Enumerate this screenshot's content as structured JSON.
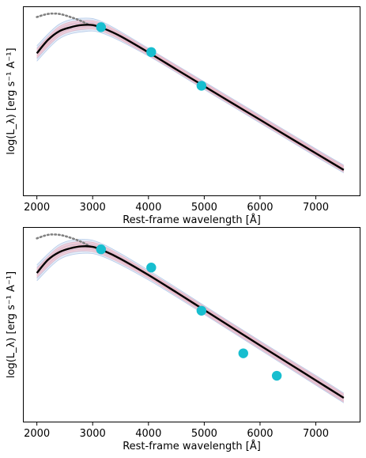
{
  "chart_data": [
    {
      "type": "line",
      "xlabel": "Rest-frame wavelength [Å]",
      "ylabel": "log(L_λ) [erg s⁻¹ A⁻¹]",
      "xlim": [
        1750,
        7800
      ],
      "ylim": [
        0,
        1
      ],
      "xticks": [
        2000,
        3000,
        4000,
        5000,
        6000,
        7000
      ],
      "yticks_shown": false,
      "model_curve": {
        "x": [
          2000,
          2200,
          2400,
          2600,
          2800,
          3000,
          3200,
          3500,
          4000,
          4500,
          5000,
          5500,
          6000,
          6500,
          7000,
          7500
        ],
        "y": [
          0.771,
          0.849,
          0.899,
          0.922,
          0.935,
          0.935,
          0.915,
          0.87,
          0.776,
          0.677,
          0.579,
          0.481,
          0.384,
          0.286,
          0.189,
          0.092
        ],
        "color": "#000000"
      },
      "extrapolated_curve": {
        "x": [
          2000,
          2200,
          2400,
          2600,
          2800,
          2950
        ],
        "y": [
          0.982,
          1.0,
          1.0,
          0.982,
          0.958,
          0.933
        ],
        "color": "#808080",
        "style": "dotted"
      },
      "uncertainty_bands": [
        {
          "color": "#aec7e8",
          "x": [
            2000,
            2400,
            2800,
            3200,
            4000,
            5000,
            6000,
            7000,
            7500
          ],
          "upper": [
            0.815,
            0.94,
            0.975,
            0.95,
            0.8,
            0.605,
            0.41,
            0.215,
            0.12
          ],
          "lower": [
            0.725,
            0.855,
            0.895,
            0.885,
            0.755,
            0.56,
            0.365,
            0.17,
            0.075
          ]
        },
        {
          "color": "#f4b6c2",
          "x": [
            2000,
            2400,
            2800,
            3200,
            4000,
            5000,
            6000,
            7000,
            7500
          ],
          "upper": [
            0.795,
            0.925,
            0.96,
            0.94,
            0.795,
            0.6,
            0.405,
            0.21,
            0.115
          ],
          "lower": [
            0.745,
            0.87,
            0.91,
            0.895,
            0.76,
            0.565,
            0.37,
            0.175,
            0.08
          ]
        }
      ],
      "photometry": {
        "x": [
          3150,
          4050,
          4950
        ],
        "y": [
          0.923,
          0.778,
          0.582
        ],
        "color": "#17becf"
      }
    },
    {
      "type": "line",
      "xlabel": "Rest-frame wavelength [Å]",
      "ylabel": "log(L_λ) [erg s⁻¹ A⁻¹]",
      "xlim": [
        1750,
        7800
      ],
      "ylim": [
        0,
        1
      ],
      "xticks": [
        2000,
        3000,
        4000,
        5000,
        6000,
        7000
      ],
      "yticks_shown": false,
      "model_curve": {
        "x": [
          2000,
          2200,
          2400,
          2600,
          2800,
          3000,
          3200,
          3500,
          4000,
          4500,
          5000,
          5500,
          6000,
          6500,
          7000,
          7500
        ],
        "y": [
          0.784,
          0.859,
          0.902,
          0.924,
          0.935,
          0.932,
          0.91,
          0.864,
          0.773,
          0.675,
          0.575,
          0.475,
          0.375,
          0.276,
          0.177,
          0.078
        ],
        "color": "#000000"
      },
      "extrapolated_curve": {
        "x": [
          2000,
          2200,
          2400,
          2600,
          2800,
          2950
        ],
        "y": [
          0.98,
          1.0,
          1.0,
          0.984,
          0.96,
          0.935
        ],
        "color": "#808080",
        "style": "dotted"
      },
      "uncertainty_bands": [
        {
          "color": "#aec7e8",
          "x": [
            2000,
            2400,
            2800,
            3200,
            4000,
            5000,
            6000,
            7000,
            7500
          ],
          "upper": [
            0.83,
            0.945,
            0.975,
            0.945,
            0.8,
            0.6,
            0.4,
            0.205,
            0.105
          ],
          "lower": [
            0.74,
            0.86,
            0.895,
            0.875,
            0.745,
            0.55,
            0.35,
            0.15,
            0.05
          ]
        },
        {
          "color": "#f4b6c2",
          "x": [
            2000,
            2400,
            2800,
            3200,
            4000,
            5000,
            6000,
            7000,
            7500
          ],
          "upper": [
            0.81,
            0.93,
            0.96,
            0.935,
            0.79,
            0.595,
            0.395,
            0.2,
            0.1
          ],
          "lower": [
            0.76,
            0.875,
            0.91,
            0.885,
            0.755,
            0.555,
            0.355,
            0.155,
            0.055
          ]
        }
      ],
      "photometry": {
        "x": [
          3150,
          4050,
          4950,
          5700,
          6300
        ],
        "y": [
          0.918,
          0.815,
          0.571,
          0.33,
          0.203
        ],
        "color": "#17becf"
      }
    }
  ]
}
